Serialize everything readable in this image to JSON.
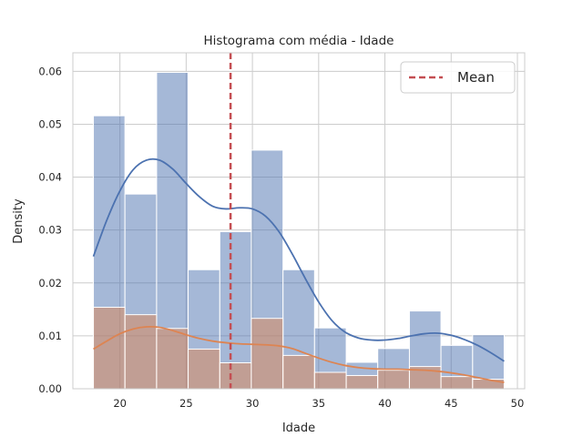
{
  "chart_data": {
    "type": "histogram",
    "title": "Histograma com média - Idade",
    "xlabel": "Idade",
    "ylabel": "Density",
    "xlim": [
      16.45,
      50.55
    ],
    "ylim": [
      0,
      0.0635
    ],
    "xticks": [
      20,
      25,
      30,
      35,
      40,
      45,
      50
    ],
    "yticks": [
      0.0,
      0.01,
      0.02,
      0.03,
      0.04,
      0.05,
      0.06
    ],
    "ytick_labels": [
      "0.00",
      "0.01",
      "0.02",
      "0.03",
      "0.04",
      "0.05",
      "0.06"
    ],
    "grid": true,
    "bin_edges": [
      18,
      20.38,
      22.77,
      25.15,
      27.54,
      29.92,
      32.31,
      34.69,
      37.08,
      39.46,
      41.85,
      44.23,
      46.62,
      49
    ],
    "series": [
      {
        "values": [
          0.0516,
          0.0368,
          0.0598,
          0.0225,
          0.0297,
          0.0451,
          0.0225,
          0.0115,
          0.005,
          0.0076,
          0.0147,
          0.0082,
          0.0102
        ],
        "kde": [
          [
            18,
            0.025
          ],
          [
            19,
            0.0318
          ],
          [
            20,
            0.0374
          ],
          [
            21,
            0.0414
          ],
          [
            22,
            0.0432
          ],
          [
            23,
            0.0432
          ],
          [
            24,
            0.0415
          ],
          [
            25,
            0.0388
          ],
          [
            26,
            0.0363
          ],
          [
            27,
            0.0345
          ],
          [
            28,
            0.034
          ],
          [
            29,
            0.0342
          ],
          [
            30,
            0.034
          ],
          [
            31,
            0.0326
          ],
          [
            32,
            0.0297
          ],
          [
            33,
            0.0255
          ],
          [
            34,
            0.0208
          ],
          [
            35,
            0.0164
          ],
          [
            36,
            0.0129
          ],
          [
            37,
            0.0107
          ],
          [
            38,
            0.0096
          ],
          [
            39,
            0.0092
          ],
          [
            40,
            0.0092
          ],
          [
            41,
            0.0095
          ],
          [
            42,
            0.01
          ],
          [
            43,
            0.0104
          ],
          [
            44,
            0.0105
          ],
          [
            45,
            0.0101
          ],
          [
            46,
            0.0093
          ],
          [
            47,
            0.0082
          ],
          [
            48,
            0.0068
          ],
          [
            49,
            0.0052
          ]
        ]
      },
      {
        "values": [
          0.0154,
          0.014,
          0.0114,
          0.0075,
          0.0049,
          0.0133,
          0.0063,
          0.0031,
          0.0025,
          0.0035,
          0.0042,
          0.0023,
          0.0018
        ],
        "kde": [
          [
            18,
            0.0075
          ],
          [
            19,
            0.009
          ],
          [
            20,
            0.0104
          ],
          [
            21,
            0.0113
          ],
          [
            22,
            0.0117
          ],
          [
            23,
            0.0116
          ],
          [
            24,
            0.011
          ],
          [
            25,
            0.0102
          ],
          [
            26,
            0.0095
          ],
          [
            27,
            0.009
          ],
          [
            28,
            0.0087
          ],
          [
            29,
            0.0085
          ],
          [
            30,
            0.0084
          ],
          [
            31,
            0.0083
          ],
          [
            32,
            0.0081
          ],
          [
            33,
            0.0076
          ],
          [
            34,
            0.0067
          ],
          [
            35,
            0.0058
          ],
          [
            36,
            0.005
          ],
          [
            37,
            0.0044
          ],
          [
            38,
            0.004
          ],
          [
            39,
            0.0038
          ],
          [
            40,
            0.0037
          ],
          [
            41,
            0.0037
          ],
          [
            42,
            0.0036
          ],
          [
            43,
            0.0035
          ],
          [
            44,
            0.0033
          ],
          [
            45,
            0.003
          ],
          [
            46,
            0.0026
          ],
          [
            47,
            0.0021
          ],
          [
            48,
            0.0016
          ],
          [
            49,
            0.0012
          ]
        ]
      }
    ],
    "mean": 28.35,
    "legend": {
      "label": "Mean",
      "location": "upper right"
    },
    "colors": {
      "bar_fill": "#4c72b0",
      "bar_fill_2": "#dd8452",
      "kde_line": "#4c72b0",
      "kde_line_2": "#dd8452",
      "mean_line": "#c44e52",
      "grid": "#cccccc",
      "spine": "#cccccc"
    }
  }
}
